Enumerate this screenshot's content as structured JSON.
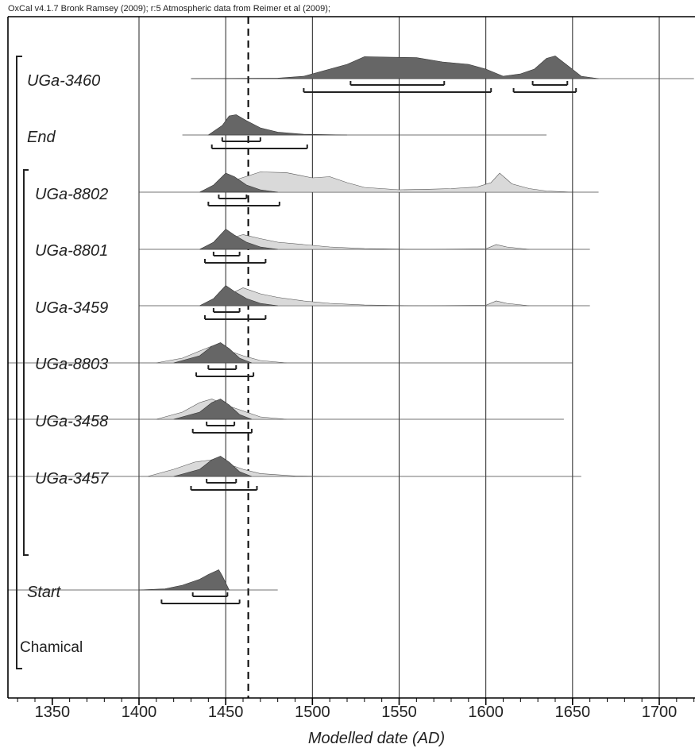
{
  "header": {
    "caption": "OxCal v4.1.7 Bronk Ramsey (2009); r:5 Atmospheric data from Reimer et al (2009);"
  },
  "chart_data": {
    "type": "area",
    "title": "",
    "xlabel": "Modelled date (AD)",
    "ylabel": "",
    "xlim": [
      1300,
      1720
    ],
    "x_ticks": [
      1350,
      1400,
      1450,
      1500,
      1550,
      1600,
      1650,
      1700
    ],
    "grid": "vertical lines at x ticks",
    "reference_line": {
      "x": 1463,
      "style": "dashed"
    },
    "colors": {
      "posterior": "#666666",
      "likelihood": "#d9d9d9",
      "axis": "#000000"
    },
    "phases": [
      {
        "label": "Chamical"
      }
    ],
    "series": [
      {
        "name": "UGa-3460",
        "posterior": [
          [
            1430,
            0
          ],
          [
            1480,
            0.02
          ],
          [
            1495,
            0.1
          ],
          [
            1505,
            0.3
          ],
          [
            1520,
            0.6
          ],
          [
            1530,
            0.92
          ],
          [
            1545,
            0.9
          ],
          [
            1560,
            0.88
          ],
          [
            1575,
            0.7
          ],
          [
            1590,
            0.6
          ],
          [
            1600,
            0.4
          ],
          [
            1610,
            0.1
          ],
          [
            1620,
            0.2
          ],
          [
            1628,
            0.4
          ],
          [
            1635,
            0.85
          ],
          [
            1640,
            0.95
          ],
          [
            1648,
            0.5
          ],
          [
            1655,
            0.1
          ],
          [
            1665,
            0
          ]
        ],
        "likelihood": [],
        "ranges_68": [
          [
            1522,
            1576
          ],
          [
            1627,
            1647
          ]
        ],
        "ranges_95": [
          [
            1495,
            1603
          ],
          [
            1616,
            1652
          ]
        ]
      },
      {
        "name": "End",
        "posterior": [
          [
            1440,
            0
          ],
          [
            1448,
            0.4
          ],
          [
            1452,
            0.8
          ],
          [
            1456,
            0.85
          ],
          [
            1462,
            0.6
          ],
          [
            1470,
            0.3
          ],
          [
            1480,
            0.12
          ],
          [
            1495,
            0.03
          ],
          [
            1520,
            0
          ]
        ],
        "likelihood": [],
        "ranges_68": [
          [
            1448,
            1470
          ]
        ],
        "ranges_95": [
          [
            1442,
            1497
          ]
        ]
      },
      {
        "name": "UGa-8802",
        "posterior": [
          [
            1435,
            0
          ],
          [
            1443,
            0.3
          ],
          [
            1450,
            0.8
          ],
          [
            1455,
            0.65
          ],
          [
            1462,
            0.3
          ],
          [
            1470,
            0.1
          ],
          [
            1480,
            0
          ]
        ],
        "likelihood": [
          [
            1440,
            0
          ],
          [
            1455,
            0.5
          ],
          [
            1470,
            0.85
          ],
          [
            1485,
            0.82
          ],
          [
            1500,
            0.6
          ],
          [
            1510,
            0.65
          ],
          [
            1520,
            0.4
          ],
          [
            1530,
            0.2
          ],
          [
            1550,
            0.1
          ],
          [
            1565,
            0.12
          ],
          [
            1580,
            0.15
          ],
          [
            1595,
            0.22
          ],
          [
            1603,
            0.4
          ],
          [
            1608,
            0.8
          ],
          [
            1615,
            0.35
          ],
          [
            1625,
            0.15
          ],
          [
            1635,
            0.05
          ],
          [
            1650,
            0
          ]
        ],
        "ranges_68": [
          [
            1446,
            1462
          ]
        ],
        "ranges_95": [
          [
            1440,
            1481
          ]
        ]
      },
      {
        "name": "UGa-8801",
        "posterior": [
          [
            1435,
            0
          ],
          [
            1443,
            0.3
          ],
          [
            1450,
            0.85
          ],
          [
            1455,
            0.6
          ],
          [
            1462,
            0.3
          ],
          [
            1470,
            0.1
          ],
          [
            1480,
            0
          ]
        ],
        "likelihood": [
          [
            1440,
            0
          ],
          [
            1450,
            0.4
          ],
          [
            1460,
            0.62
          ],
          [
            1470,
            0.45
          ],
          [
            1480,
            0.3
          ],
          [
            1495,
            0.2
          ],
          [
            1510,
            0.1
          ],
          [
            1530,
            0.03
          ],
          [
            1560,
            0
          ],
          [
            1600,
            0.02
          ],
          [
            1606,
            0.2
          ],
          [
            1612,
            0.1
          ],
          [
            1625,
            0
          ]
        ],
        "ranges_68": [
          [
            1443,
            1458
          ]
        ],
        "ranges_95": [
          [
            1438,
            1473
          ]
        ]
      },
      {
        "name": "UGa-3459",
        "posterior": [
          [
            1435,
            0
          ],
          [
            1443,
            0.3
          ],
          [
            1450,
            0.85
          ],
          [
            1455,
            0.6
          ],
          [
            1462,
            0.3
          ],
          [
            1470,
            0.1
          ],
          [
            1480,
            0
          ]
        ],
        "likelihood": [
          [
            1440,
            0
          ],
          [
            1450,
            0.4
          ],
          [
            1460,
            0.75
          ],
          [
            1470,
            0.5
          ],
          [
            1480,
            0.35
          ],
          [
            1495,
            0.2
          ],
          [
            1510,
            0.1
          ],
          [
            1530,
            0.03
          ],
          [
            1560,
            0
          ],
          [
            1600,
            0.02
          ],
          [
            1606,
            0.2
          ],
          [
            1612,
            0.1
          ],
          [
            1625,
            0
          ]
        ],
        "ranges_68": [
          [
            1443,
            1458
          ]
        ],
        "ranges_95": [
          [
            1438,
            1473
          ]
        ]
      },
      {
        "name": "UGa-8803",
        "posterior": [
          [
            1420,
            0
          ],
          [
            1435,
            0.3
          ],
          [
            1442,
            0.7
          ],
          [
            1447,
            0.85
          ],
          [
            1452,
            0.6
          ],
          [
            1458,
            0.2
          ],
          [
            1465,
            0
          ]
        ],
        "likelihood": [
          [
            1410,
            0
          ],
          [
            1425,
            0.2
          ],
          [
            1435,
            0.5
          ],
          [
            1442,
            0.7
          ],
          [
            1450,
            0.55
          ],
          [
            1460,
            0.3
          ],
          [
            1470,
            0.1
          ],
          [
            1485,
            0
          ]
        ],
        "ranges_68": [
          [
            1440,
            1456
          ]
        ],
        "ranges_95": [
          [
            1433,
            1466
          ]
        ]
      },
      {
        "name": "UGa-3458",
        "posterior": [
          [
            1420,
            0
          ],
          [
            1435,
            0.3
          ],
          [
            1442,
            0.7
          ],
          [
            1447,
            0.85
          ],
          [
            1452,
            0.6
          ],
          [
            1458,
            0.2
          ],
          [
            1465,
            0
          ]
        ],
        "likelihood": [
          [
            1410,
            0
          ],
          [
            1425,
            0.3
          ],
          [
            1435,
            0.7
          ],
          [
            1442,
            0.85
          ],
          [
            1450,
            0.6
          ],
          [
            1460,
            0.35
          ],
          [
            1470,
            0.1
          ],
          [
            1485,
            0
          ]
        ],
        "ranges_68": [
          [
            1439,
            1455
          ]
        ],
        "ranges_95": [
          [
            1431,
            1465
          ]
        ]
      },
      {
        "name": "UGa-3457",
        "posterior": [
          [
            1420,
            0
          ],
          [
            1435,
            0.3
          ],
          [
            1442,
            0.7
          ],
          [
            1447,
            0.85
          ],
          [
            1452,
            0.6
          ],
          [
            1458,
            0.2
          ],
          [
            1465,
            0
          ]
        ],
        "likelihood": [
          [
            1405,
            0
          ],
          [
            1420,
            0.3
          ],
          [
            1432,
            0.6
          ],
          [
            1442,
            0.7
          ],
          [
            1450,
            0.55
          ],
          [
            1460,
            0.3
          ],
          [
            1470,
            0.12
          ],
          [
            1490,
            0.02
          ],
          [
            1510,
            0
          ]
        ],
        "ranges_68": [
          [
            1439,
            1456
          ]
        ],
        "ranges_95": [
          [
            1430,
            1468
          ]
        ]
      },
      {
        "name": "Start",
        "posterior": [
          [
            1400,
            0
          ],
          [
            1415,
            0.05
          ],
          [
            1425,
            0.2
          ],
          [
            1435,
            0.45
          ],
          [
            1440,
            0.65
          ],
          [
            1446,
            0.85
          ],
          [
            1448,
            0.6
          ],
          [
            1452,
            0
          ]
        ],
        "likelihood": [],
        "ranges_68": [
          [
            1431,
            1451
          ]
        ],
        "ranges_95": [
          [
            1413,
            1458
          ]
        ]
      }
    ]
  }
}
